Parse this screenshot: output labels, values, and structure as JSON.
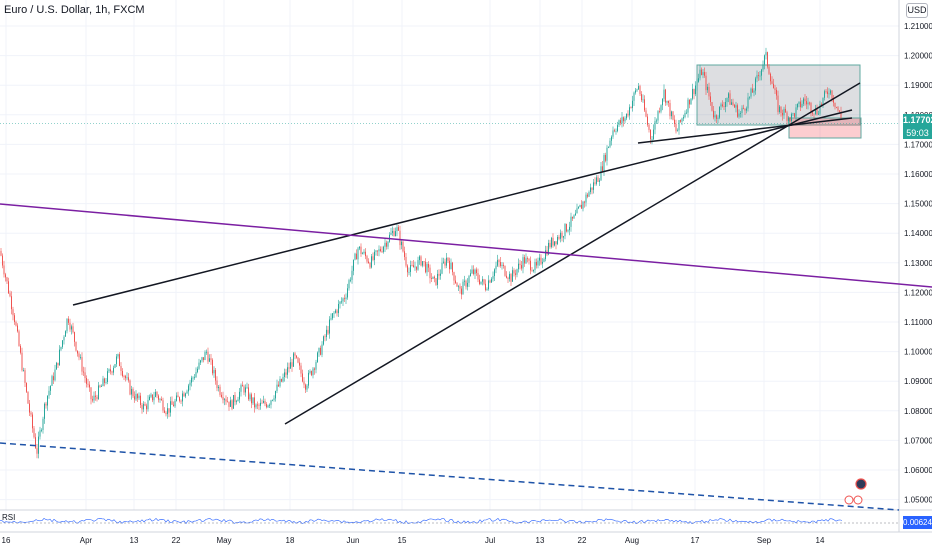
{
  "header": {
    "title": "Euro / U.S. Dollar, 1h, FXCM",
    "currency": "USD"
  },
  "price_axis": {
    "current_price": "1.17702",
    "countdown": "59:03",
    "price_label_color": "#26a69a"
  },
  "oscillator": {
    "name": "RSI",
    "value": "0.00624",
    "label_color": "#2962ff"
  },
  "chart_data": {
    "type": "candlestick",
    "y_ticks": [
      "1.21000",
      "1.20000",
      "1.19000",
      "1.18000",
      "1.17000",
      "1.16000",
      "1.15000",
      "1.14000",
      "1.13000",
      "1.12000",
      "1.11000",
      "1.10000",
      "1.09000",
      "1.08000",
      "1.07000",
      "1.06000",
      "1.05000"
    ],
    "x_ticks": [
      "16",
      "Apr",
      "13",
      "22",
      "May",
      "18",
      "Jun",
      "15",
      "Jul",
      "13",
      "22",
      "Aug",
      "17",
      "Sep",
      "14"
    ],
    "ylim": [
      1.045,
      1.215
    ],
    "up_color": "#26a69a",
    "down_color": "#ef5350",
    "price_path": [
      {
        "t": 0.0,
        "p": 1.134
      },
      {
        "t": 1.0,
        "p": 1.112
      },
      {
        "t": 2.0,
        "p": 1.082
      },
      {
        "t": 2.6,
        "p": 1.066
      },
      {
        "t": 3.2,
        "p": 1.083
      },
      {
        "t": 4.0,
        "p": 1.095
      },
      {
        "t": 4.8,
        "p": 1.112
      },
      {
        "t": 5.6,
        "p": 1.098
      },
      {
        "t": 6.5,
        "p": 1.083
      },
      {
        "t": 7.4,
        "p": 1.09
      },
      {
        "t": 8.3,
        "p": 1.098
      },
      {
        "t": 9.2,
        "p": 1.087
      },
      {
        "t": 10.2,
        "p": 1.081
      },
      {
        "t": 11.0,
        "p": 1.086
      },
      {
        "t": 11.8,
        "p": 1.08
      },
      {
        "t": 12.8,
        "p": 1.085
      },
      {
        "t": 13.6,
        "p": 1.091
      },
      {
        "t": 14.6,
        "p": 1.1
      },
      {
        "t": 15.4,
        "p": 1.088
      },
      {
        "t": 16.3,
        "p": 1.082
      },
      {
        "t": 17.2,
        "p": 1.088
      },
      {
        "t": 18.1,
        "p": 1.081
      },
      {
        "t": 19.0,
        "p": 1.083
      },
      {
        "t": 19.9,
        "p": 1.09
      },
      {
        "t": 20.8,
        "p": 1.098
      },
      {
        "t": 21.6,
        "p": 1.089
      },
      {
        "t": 22.6,
        "p": 1.1
      },
      {
        "t": 23.5,
        "p": 1.112
      },
      {
        "t": 24.4,
        "p": 1.119
      },
      {
        "t": 25.3,
        "p": 1.135
      },
      {
        "t": 26.2,
        "p": 1.13
      },
      {
        "t": 27.1,
        "p": 1.136
      },
      {
        "t": 28.0,
        "p": 1.142
      },
      {
        "t": 28.9,
        "p": 1.127
      },
      {
        "t": 29.8,
        "p": 1.131
      },
      {
        "t": 30.7,
        "p": 1.123
      },
      {
        "t": 31.6,
        "p": 1.132
      },
      {
        "t": 32.5,
        "p": 1.12
      },
      {
        "t": 33.4,
        "p": 1.127
      },
      {
        "t": 34.3,
        "p": 1.122
      },
      {
        "t": 35.2,
        "p": 1.13
      },
      {
        "t": 36.1,
        "p": 1.125
      },
      {
        "t": 37.0,
        "p": 1.131
      },
      {
        "t": 37.9,
        "p": 1.128
      },
      {
        "t": 38.8,
        "p": 1.136
      },
      {
        "t": 39.7,
        "p": 1.14
      },
      {
        "t": 40.6,
        "p": 1.145
      },
      {
        "t": 41.5,
        "p": 1.153
      },
      {
        "t": 42.4,
        "p": 1.16
      },
      {
        "t": 43.3,
        "p": 1.175
      },
      {
        "t": 44.2,
        "p": 1.179
      },
      {
        "t": 45.1,
        "p": 1.19
      },
      {
        "t": 46.0,
        "p": 1.172
      },
      {
        "t": 46.9,
        "p": 1.188
      },
      {
        "t": 47.8,
        "p": 1.174
      },
      {
        "t": 48.7,
        "p": 1.185
      },
      {
        "t": 49.6,
        "p": 1.195
      },
      {
        "t": 50.5,
        "p": 1.179
      },
      {
        "t": 51.4,
        "p": 1.186
      },
      {
        "t": 52.3,
        "p": 1.18
      },
      {
        "t": 53.2,
        "p": 1.188
      },
      {
        "t": 54.1,
        "p": 1.2
      },
      {
        "t": 55.0,
        "p": 1.182
      },
      {
        "t": 55.9,
        "p": 1.179
      },
      {
        "t": 56.8,
        "p": 1.185
      },
      {
        "t": 57.7,
        "p": 1.181
      },
      {
        "t": 58.6,
        "p": 1.189
      },
      {
        "t": 59.5,
        "p": 1.178
      }
    ]
  }
}
